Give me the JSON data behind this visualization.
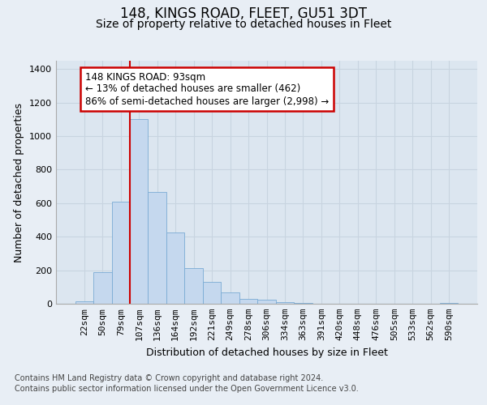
{
  "title": "148, KINGS ROAD, FLEET, GU51 3DT",
  "subtitle": "Size of property relative to detached houses in Fleet",
  "xlabel": "Distribution of detached houses by size in Fleet",
  "ylabel": "Number of detached properties",
  "footer_line1": "Contains HM Land Registry data © Crown copyright and database right 2024.",
  "footer_line2": "Contains public sector information licensed under the Open Government Licence v3.0.",
  "annotation_line0": "148 KINGS ROAD: 93sqm",
  "annotation_line1": "← 13% of detached houses are smaller (462)",
  "annotation_line2": "86% of semi-detached houses are larger (2,998) →",
  "bar_color": "#c5d8ee",
  "bar_edge_color": "#7aabd4",
  "vline_color": "#cc0000",
  "vline_x": 2.5,
  "categories": [
    "22sqm",
    "50sqm",
    "79sqm",
    "107sqm",
    "136sqm",
    "164sqm",
    "192sqm",
    "221sqm",
    "249sqm",
    "278sqm",
    "306sqm",
    "334sqm",
    "363sqm",
    "391sqm",
    "420sqm",
    "448sqm",
    "476sqm",
    "505sqm",
    "533sqm",
    "562sqm",
    "590sqm"
  ],
  "values": [
    15,
    190,
    610,
    1100,
    665,
    425,
    215,
    130,
    68,
    30,
    22,
    10,
    5,
    2,
    1,
    0,
    0,
    0,
    0,
    0,
    5
  ],
  "ylim": [
    0,
    1450
  ],
  "yticks": [
    0,
    200,
    400,
    600,
    800,
    1000,
    1200,
    1400
  ],
  "grid_color": "#c8d4e0",
  "bg_color": "#e8eef5",
  "plot_bg_color": "#dce6f0",
  "title_fontsize": 12,
  "subtitle_fontsize": 10,
  "axis_label_fontsize": 9,
  "tick_fontsize": 8,
  "footer_fontsize": 7,
  "ann_fontsize": 8.5
}
